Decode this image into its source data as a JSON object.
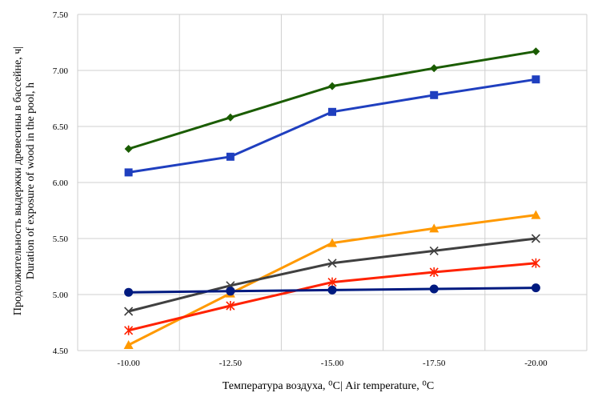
{
  "chart_data": {
    "type": "line",
    "title": "",
    "xlabel": "Температура воздуха, ⁰С| Air temperature, ⁰С",
    "ylabel_lines": [
      "Продолжительность выдержки древесины в бассейне, ч|",
      "Duration of exposure of wood in the pool, h"
    ],
    "categories": [
      "-10.00",
      "-12.50",
      "-15.00",
      "-17.50",
      "-20.00"
    ],
    "y_ticks": [
      "4.50",
      "5.00",
      "5.50",
      "6.00",
      "6.50",
      "7.00",
      "7.50"
    ],
    "ylim": [
      4.5,
      7.5
    ],
    "grid": true,
    "legend": "none",
    "series": [
      {
        "color": "#1a5c00",
        "marker": "diamond",
        "values": [
          6.3,
          6.58,
          6.86,
          7.02,
          7.17
        ]
      },
      {
        "color": "#1f3fbf",
        "marker": "square",
        "values": [
          6.09,
          6.23,
          6.63,
          6.78,
          6.92
        ]
      },
      {
        "color": "#ff9900",
        "marker": "triangle",
        "values": [
          4.55,
          5.01,
          5.46,
          5.59,
          5.71
        ]
      },
      {
        "color": "#404040",
        "marker": "x",
        "values": [
          4.85,
          5.08,
          5.28,
          5.39,
          5.5
        ]
      },
      {
        "color": "#ff2200",
        "marker": "star",
        "values": [
          4.68,
          4.9,
          5.11,
          5.2,
          5.28
        ]
      },
      {
        "color": "#001a80",
        "marker": "circle",
        "values": [
          5.02,
          5.03,
          5.04,
          5.05,
          5.06
        ]
      }
    ]
  }
}
